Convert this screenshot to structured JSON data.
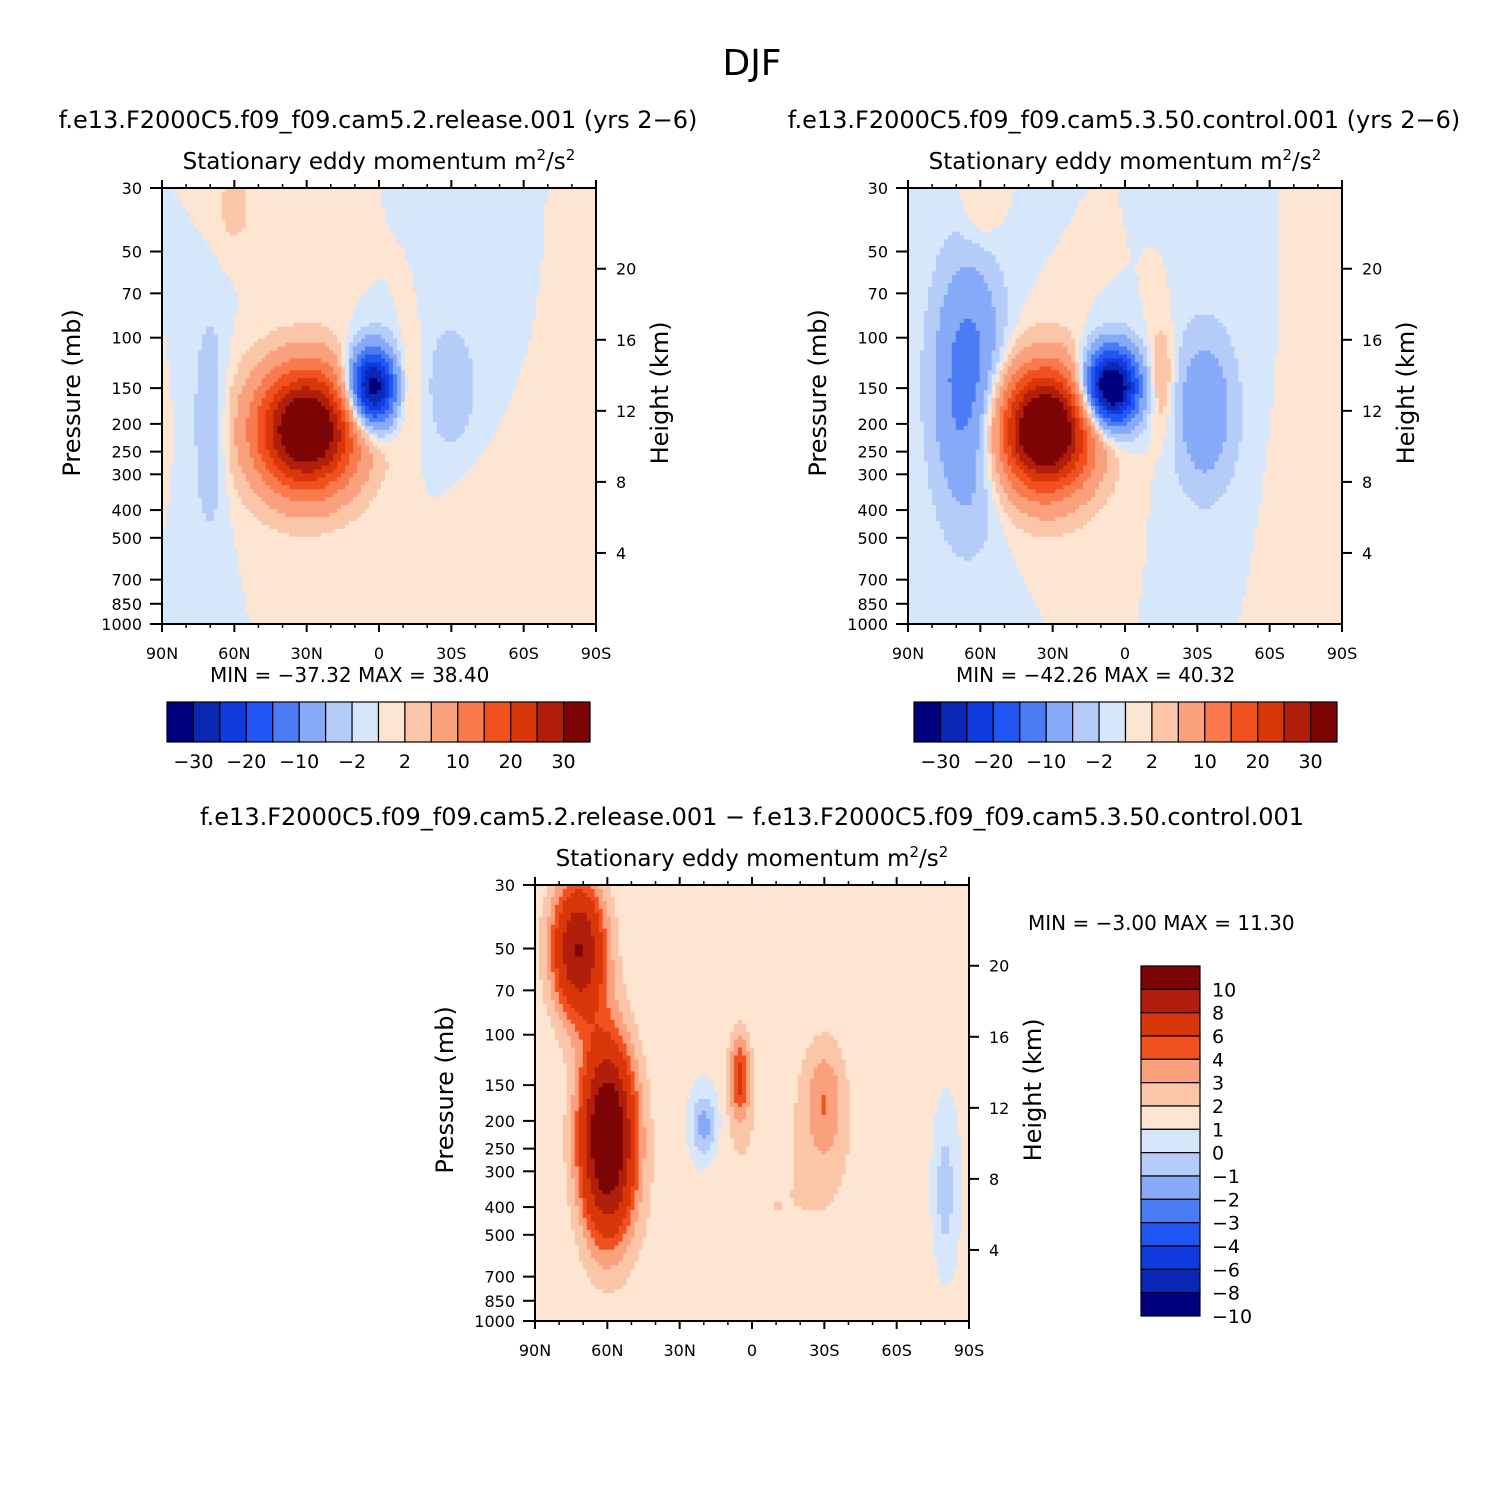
{
  "figure": {
    "season_title": "DJF"
  },
  "colors": {
    "panel_scale": [
      "#000080",
      "#0A28B4",
      "#0F3BE0",
      "#2156F5",
      "#4A7DF5",
      "#86AAF7",
      "#B5CCF9",
      "#D6E7FB",
      "#FEE5D2",
      "#FBC6A8",
      "#FAA07C",
      "#F97B4D",
      "#F2501E",
      "#D93609",
      "#B11F0C",
      "#7E0505"
    ],
    "diff_scale": [
      "#000080",
      "#0A28B4",
      "#0F3BE0",
      "#2156F5",
      "#4A7DF5",
      "#86AAF7",
      "#B5CCF9",
      "#D6E7FB",
      "#FEE5D2",
      "#FBC6A8",
      "#FAA07C",
      "#F2501E",
      "#D93609",
      "#B11F0C",
      "#7E0505"
    ]
  },
  "chart_data": [
    {
      "type": "heatmap",
      "panel": "top-left",
      "case_title": "f.e13.F2000C5.f09_f09.cam5.2.release.001 (yrs 2-6)",
      "title": "Stationary eddy momentum",
      "units_base": "m",
      "units_mid": "/s",
      "units_sup": "2",
      "xlabel": "",
      "ylabel": "Pressure (mb)",
      "y2label": "Height (km)",
      "x_tick_labels": [
        "90N",
        "60N",
        "30N",
        "0",
        "30S",
        "60S",
        "90S"
      ],
      "x_tick_values": [
        90,
        60,
        30,
        0,
        -30,
        -60,
        -90
      ],
      "y_tick_labels": [
        "30",
        "50",
        "70",
        "100",
        "150",
        "200",
        "250",
        "300",
        "400",
        "500",
        "700",
        "850",
        "1000"
      ],
      "y_tick_values": [
        30,
        50,
        70,
        100,
        150,
        200,
        250,
        300,
        400,
        500,
        700,
        850,
        1000
      ],
      "y2_tick_labels": [
        "20",
        "16",
        "12",
        "8",
        "4"
      ],
      "y2_tick_values": [
        20,
        16,
        12,
        8,
        4
      ],
      "xlim": [
        90,
        -90
      ],
      "ylim": [
        1000,
        30
      ],
      "stats": {
        "min_label": "MIN =",
        "min_value": "-37.32",
        "max_label": "MAX =",
        "max_value": "38.40"
      },
      "contour_levels": [
        -30,
        -25,
        -20,
        -15,
        -10,
        -5,
        -2,
        0,
        2,
        5,
        10,
        15,
        20,
        25,
        30
      ],
      "colorbar_tick_labels": [
        "-30",
        "-20",
        "-10",
        "-2",
        "2",
        "10",
        "20",
        "30"
      ],
      "colorbar_orientation": "horizontal",
      "features": [
        {
          "lat": 30,
          "p": 210,
          "amp": 40,
          "slat": 15,
          "slogp": 0.35
        },
        {
          "lat": 3,
          "p": 150,
          "amp": -37,
          "slat": 7,
          "slogp": 0.22
        },
        {
          "lat": 70,
          "p": 200,
          "amp": -5,
          "slat": 5,
          "slogp": 0.6
        },
        {
          "lat": -12,
          "p": 150,
          "amp": 4,
          "slat": 4,
          "slogp": 0.3
        },
        {
          "lat": -30,
          "p": 150,
          "amp": -4,
          "slat": 8,
          "slogp": 0.4
        },
        {
          "lat": 60,
          "p": 35,
          "amp": 3,
          "slat": 6,
          "slogp": 0.25
        },
        {
          "lat": -40,
          "p": 500,
          "amp": 1.2,
          "slat": 10,
          "slogp": 0.5
        },
        {
          "lat": -80,
          "p": 600,
          "amp": 1,
          "slat": 6,
          "slogp": 0.5
        }
      ]
    },
    {
      "type": "heatmap",
      "panel": "top-right",
      "case_title": "f.e13.F2000C5.f09_f09.cam5.3.50.control.001 (yrs 2-6)",
      "title": "Stationary eddy momentum",
      "units_base": "m",
      "units_mid": "/s",
      "units_sup": "2",
      "xlabel": "",
      "ylabel": "Pressure (mb)",
      "y2label": "Height (km)",
      "x_tick_labels": [
        "90N",
        "60N",
        "30N",
        "0",
        "30S",
        "60S",
        "90S"
      ],
      "x_tick_values": [
        90,
        60,
        30,
        0,
        -30,
        -60,
        -90
      ],
      "y_tick_labels": [
        "30",
        "50",
        "70",
        "100",
        "150",
        "200",
        "250",
        "300",
        "400",
        "500",
        "700",
        "850",
        "1000"
      ],
      "y_tick_values": [
        30,
        50,
        70,
        100,
        150,
        200,
        250,
        300,
        400,
        500,
        700,
        850,
        1000
      ],
      "y2_tick_labels": [
        "20",
        "16",
        "12",
        "8",
        "4"
      ],
      "y2_tick_values": [
        20,
        16,
        12,
        8,
        4
      ],
      "xlim": [
        90,
        -90
      ],
      "ylim": [
        1000,
        30
      ],
      "stats": {
        "min_label": "MIN =",
        "min_value": "-42.26",
        "max_label": "MAX =",
        "max_value": "40.32"
      },
      "contour_levels": [
        -30,
        -25,
        -20,
        -15,
        -10,
        -5,
        -2,
        0,
        2,
        5,
        10,
        15,
        20,
        25,
        30
      ],
      "colorbar_tick_labels": [
        "-30",
        "-20",
        "-10",
        "-2",
        "2",
        "10",
        "20",
        "30"
      ],
      "colorbar_orientation": "horizontal",
      "features": [
        {
          "lat": 33,
          "p": 210,
          "amp": 42,
          "slat": 14,
          "slogp": 0.35
        },
        {
          "lat": 6,
          "p": 150,
          "amp": -42,
          "slat": 8,
          "slogp": 0.22
        },
        {
          "lat": 65,
          "p": 150,
          "amp": -14,
          "slat": 10,
          "slogp": 0.7
        },
        {
          "lat": -15,
          "p": 140,
          "amp": 6,
          "slat": 4,
          "slogp": 0.3
        },
        {
          "lat": -33,
          "p": 180,
          "amp": -9,
          "slat": 9,
          "slogp": 0.45
        },
        {
          "lat": 60,
          "p": 35,
          "amp": 3,
          "slat": 6,
          "slogp": 0.25
        },
        {
          "lat": -75,
          "p": 500,
          "amp": 1.5,
          "slat": 8,
          "slogp": 0.6
        }
      ]
    },
    {
      "type": "heatmap",
      "panel": "bottom-difference",
      "case_title": "f.e13.F2000C5.f09_f09.cam5.2.release.001 - f.e13.F2000C5.f09_f09.cam5.3.50.control.001",
      "title": "Stationary eddy momentum",
      "units_base": "m",
      "units_mid": "/s",
      "units_sup": "2",
      "xlabel": "",
      "ylabel": "Pressure (mb)",
      "y2label": "Height (km)",
      "x_tick_labels": [
        "90N",
        "60N",
        "30N",
        "0",
        "30S",
        "60S",
        "90S"
      ],
      "x_tick_values": [
        90,
        60,
        30,
        0,
        -30,
        -60,
        -90
      ],
      "y_tick_labels": [
        "30",
        "50",
        "70",
        "100",
        "150",
        "200",
        "250",
        "300",
        "400",
        "500",
        "700",
        "850",
        "1000"
      ],
      "y_tick_values": [
        30,
        50,
        70,
        100,
        150,
        200,
        250,
        300,
        400,
        500,
        700,
        850,
        1000
      ],
      "y2_tick_labels": [
        "20",
        "16",
        "12",
        "8",
        "4"
      ],
      "y2_tick_values": [
        20,
        16,
        12,
        8,
        4
      ],
      "xlim": [
        90,
        -90
      ],
      "ylim": [
        1000,
        30
      ],
      "stats": {
        "min_label": "MIN =",
        "min_value": "-3.00",
        "max_label": "MAX =",
        "max_value": "11.30"
      },
      "contour_levels": [
        -10,
        -8,
        -6,
        -4,
        -3,
        -2,
        -1,
        0,
        1,
        2,
        3,
        4,
        6,
        8,
        10
      ],
      "colorbar_tick_labels": [
        "10",
        "8",
        "6",
        "4",
        "3",
        "2",
        "1",
        "0",
        "-1",
        "-2",
        "-3",
        "-4",
        "-6",
        "-8",
        "-10"
      ],
      "colorbar_orientation": "vertical",
      "features": [
        {
          "lat": 60,
          "p": 230,
          "amp": 11,
          "slat": 8,
          "slogp": 0.55
        },
        {
          "lat": 72,
          "p": 50,
          "amp": 8,
          "slat": 8,
          "slogp": 0.4
        },
        {
          "lat": 5,
          "p": 140,
          "amp": 4,
          "slat": 3,
          "slogp": 0.25
        },
        {
          "lat": 20,
          "p": 210,
          "amp": -3,
          "slat": 4,
          "slogp": 0.2
        },
        {
          "lat": -30,
          "p": 170,
          "amp": 2.5,
          "slat": 6,
          "slogp": 0.35
        },
        {
          "lat": -80,
          "p": 350,
          "amp": -2,
          "slat": 3,
          "slogp": 0.35
        },
        {
          "lat": -10,
          "p": 400,
          "amp": 1,
          "slat": 40,
          "slogp": 0.9
        }
      ]
    }
  ]
}
